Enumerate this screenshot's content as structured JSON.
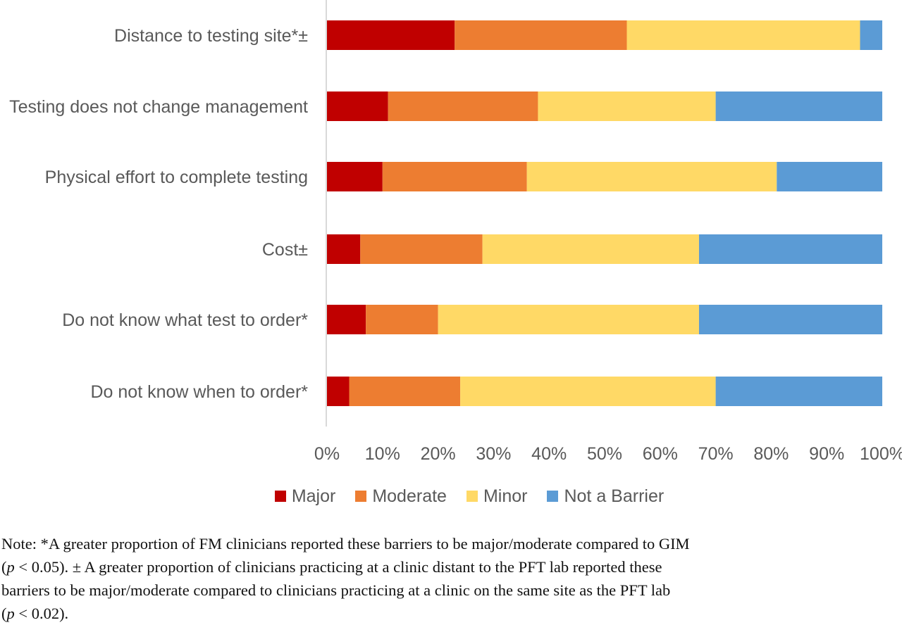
{
  "chart_data": {
    "type": "bar",
    "orientation": "horizontal",
    "stacked": "100%",
    "categories": [
      "Distance to testing site*±",
      "Testing does not change management",
      "Physical effort to complete testing",
      "Cost±",
      "Do not know what test to order*",
      "Do not know when to order*"
    ],
    "series": [
      {
        "name": "Major",
        "color": "#c00000",
        "values": [
          23,
          11,
          10,
          6,
          7,
          4
        ]
      },
      {
        "name": "Moderate",
        "color": "#ed7d31",
        "values": [
          31,
          27,
          26,
          22,
          13,
          20
        ]
      },
      {
        "name": "Minor",
        "color": "#ffd966",
        "values": [
          42,
          32,
          45,
          39,
          47,
          46
        ]
      },
      {
        "name": "Not a Barrier",
        "color": "#5b9bd5",
        "values": [
          4,
          30,
          19,
          33,
          33,
          30
        ]
      }
    ],
    "xticks": [
      "0%",
      "10%",
      "20%",
      "30%",
      "40%",
      "50%",
      "60%",
      "70%",
      "80%",
      "90%",
      "100%"
    ],
    "xlim": [
      0,
      100
    ],
    "grid": false,
    "legend_position": "bottom"
  },
  "note": {
    "line1": "Note: *A greater proportion of FM clinicians reported these barriers to be major/moderate compared to GIM",
    "line2_p": "p",
    "line2_rest": " < 0.05). ± A greater proportion of clinicians practicing at a clinic distant to the PFT lab reported these",
    "line3": "barriers to be major/moderate compared to clinicians practicing at a clinic on the same site as the PFT lab",
    "line4_p": "p",
    "line4_rest": " < 0.02)."
  }
}
